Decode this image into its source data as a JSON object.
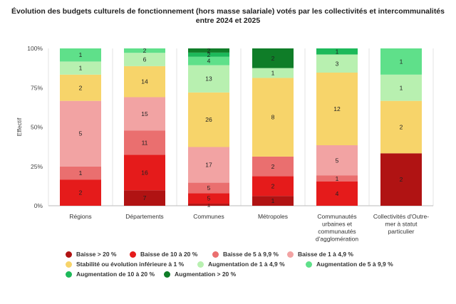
{
  "chart_data": {
    "type": "bar",
    "stacked": "percent",
    "title_lines": [
      "Évolution des budgets culturels de fonctionnement (hors masse salariale) votés par les collectivités et intercommunalités",
      "entre 2024 et 2025"
    ],
    "ylabel": "Effectif",
    "ylim": [
      0,
      100
    ],
    "yticks": [
      "0%",
      "25%",
      "50%",
      "75%",
      "100%"
    ],
    "categories": [
      [
        "Régions"
      ],
      [
        "Départements"
      ],
      [
        "Communes"
      ],
      [
        "Métropoles"
      ],
      [
        "Communautés",
        "urbaines et",
        "communautés",
        "d'agglomération"
      ],
      [
        "Collectivités d'Outre-",
        "mer à statut",
        "particulier"
      ]
    ],
    "series": [
      {
        "name": "Baisse > 20 %",
        "color": "#b01313",
        "values": [
          0,
          7,
          1,
          1,
          0,
          2
        ]
      },
      {
        "name": "Baisse de 10 à 20 %",
        "color": "#e51b1b",
        "values": [
          2,
          16,
          5,
          2,
          4,
          0
        ]
      },
      {
        "name": "Baisse de 5 à 9,9 %",
        "color": "#ea6f6f",
        "values": [
          1,
          11,
          5,
          2,
          1,
          0
        ]
      },
      {
        "name": "Baisse de 1 à 4,9 %",
        "color": "#f2a3a3",
        "values": [
          5,
          15,
          17,
          0,
          5,
          0
        ]
      },
      {
        "name": "Stabilité ou évolution inférieure à 1 %",
        "color": "#f7d46a",
        "values": [
          2,
          14,
          26,
          8,
          12,
          2
        ]
      },
      {
        "name": "Augmentation de 1 à 4,9 %",
        "color": "#b8f0b0",
        "values": [
          1,
          6,
          13,
          1,
          3,
          1
        ]
      },
      {
        "name": "Augmentation de 5 à 9,9 %",
        "color": "#5fe08a",
        "values": [
          1,
          2,
          4,
          0,
          0,
          1
        ]
      },
      {
        "name": "Augmentation de 10 à 20 %",
        "color": "#1db95a",
        "values": [
          0,
          0,
          2,
          0,
          1,
          0
        ]
      },
      {
        "name": "Augmentation > 20 %",
        "color": "#0f7d28",
        "values": [
          0,
          0,
          2,
          2,
          0,
          0
        ]
      }
    ]
  }
}
